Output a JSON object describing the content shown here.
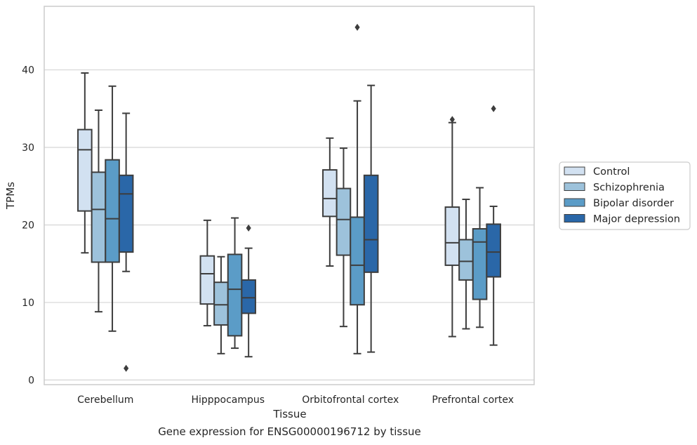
{
  "caption": "Gene expression for ENSG00000196712 by tissue",
  "chart_data": {
    "type": "box",
    "xlabel": "Tissue",
    "ylabel": "TPMs",
    "ylim": [
      -0.6,
      48.2
    ],
    "yticks": [
      0,
      10,
      20,
      30,
      40
    ],
    "grid": "y",
    "legend_position": "right",
    "categories": [
      "Cerebellum",
      "Hipppocampus",
      "Orbitofrontal cortex",
      "Prefrontal cortex"
    ],
    "series": [
      {
        "name": "Control",
        "color": "#d2e1f1",
        "boxes": [
          {
            "whislo": 16.4,
            "q1": 21.8,
            "med": 29.7,
            "q3": 32.3,
            "whishi": 39.6,
            "fliers": []
          },
          {
            "whislo": 7.0,
            "q1": 9.8,
            "med": 13.7,
            "q3": 16.0,
            "whishi": 20.6,
            "fliers": []
          },
          {
            "whislo": 14.7,
            "q1": 21.1,
            "med": 23.4,
            "q3": 27.1,
            "whishi": 31.2,
            "fliers": []
          },
          {
            "whislo": 5.6,
            "q1": 14.8,
            "med": 17.7,
            "q3": 22.3,
            "whishi": 33.2,
            "fliers": [
              33.6
            ]
          }
        ]
      },
      {
        "name": "Schizophrenia",
        "color": "#9dc2db",
        "boxes": [
          {
            "whislo": 8.8,
            "q1": 15.2,
            "med": 22.0,
            "q3": 26.8,
            "whishi": 34.8,
            "fliers": []
          },
          {
            "whislo": 3.4,
            "q1": 7.1,
            "med": 9.7,
            "q3": 12.6,
            "whishi": 15.9,
            "fliers": []
          },
          {
            "whislo": 6.9,
            "q1": 16.1,
            "med": 20.7,
            "q3": 24.7,
            "whishi": 29.9,
            "fliers": []
          },
          {
            "whislo": 6.6,
            "q1": 12.9,
            "med": 15.3,
            "q3": 18.1,
            "whishi": 23.3,
            "fliers": []
          }
        ]
      },
      {
        "name": "Bipolar disorder",
        "color": "#5b9cc7",
        "boxes": [
          {
            "whislo": 6.3,
            "q1": 15.2,
            "med": 20.8,
            "q3": 28.4,
            "whishi": 37.9,
            "fliers": []
          },
          {
            "whislo": 4.1,
            "q1": 5.7,
            "med": 11.7,
            "q3": 16.2,
            "whishi": 20.9,
            "fliers": []
          },
          {
            "whislo": 3.4,
            "q1": 9.7,
            "med": 14.8,
            "q3": 21.0,
            "whishi": 36.0,
            "fliers": [
              45.5
            ]
          },
          {
            "whislo": 6.8,
            "q1": 10.4,
            "med": 17.8,
            "q3": 19.5,
            "whishi": 24.8,
            "fliers": []
          }
        ]
      },
      {
        "name": "Major depression",
        "color": "#2a67a8",
        "boxes": [
          {
            "whislo": 14.0,
            "q1": 16.5,
            "med": 24.0,
            "q3": 26.4,
            "whishi": 34.4,
            "fliers": [
              1.5
            ]
          },
          {
            "whislo": 3.0,
            "q1": 8.6,
            "med": 10.6,
            "q3": 12.9,
            "whishi": 17.0,
            "fliers": [
              19.6
            ]
          },
          {
            "whislo": 3.6,
            "q1": 13.9,
            "med": 18.1,
            "q3": 26.4,
            "whishi": 38.0,
            "fliers": []
          },
          {
            "whislo": 4.5,
            "q1": 13.3,
            "med": 16.5,
            "q3": 20.1,
            "whishi": 22.4,
            "fliers": [
              35.0
            ]
          }
        ]
      }
    ]
  }
}
